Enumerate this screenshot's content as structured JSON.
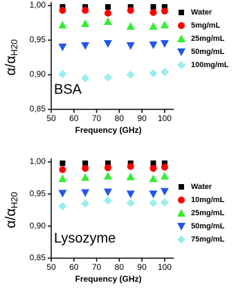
{
  "chart_data": [
    {
      "type": "scatter",
      "panel_label": "BSA",
      "xlabel": "Frequency (GHz)",
      "ylabel": "α/α",
      "ylabel_subscript": "H20",
      "x": [
        55,
        65,
        75,
        85,
        95,
        100
      ],
      "xlim": [
        50,
        104
      ],
      "xticks": [
        50,
        60,
        70,
        80,
        90,
        100
      ],
      "ylim": [
        0.85,
        1.0
      ],
      "yticks": [
        {
          "value": 0.85,
          "label": "0,85"
        },
        {
          "value": 0.9,
          "label": "0,90"
        },
        {
          "value": 0.95,
          "label": "0,95"
        },
        {
          "value": 1.0,
          "label": "1,00"
        }
      ],
      "series": [
        {
          "name": "Water",
          "color": "#000000",
          "marker": "square",
          "values": [
            0.998,
            0.998,
            0.998,
            0.998,
            0.998,
            0.998
          ]
        },
        {
          "name": "5mg/mL",
          "color": "#ff0000",
          "marker": "circle",
          "values": [
            0.993,
            0.993,
            0.989,
            0.993,
            0.99,
            0.992
          ]
        },
        {
          "name": "25mg/mL",
          "color": "#33ee33",
          "marker": "triangle-up",
          "values": [
            0.972,
            0.974,
            0.977,
            0.97,
            0.97,
            0.972
          ]
        },
        {
          "name": "50mg/mL",
          "color": "#2255ee",
          "marker": "triangle-down",
          "values": [
            0.94,
            0.942,
            0.945,
            0.942,
            0.943,
            0.945
          ]
        },
        {
          "name": "100mg/mL",
          "color": "#99eeee",
          "marker": "diamond",
          "values": [
            0.901,
            0.895,
            0.896,
            0.9,
            0.902,
            0.904
          ]
        }
      ]
    },
    {
      "type": "scatter",
      "panel_label": "Lysozyme",
      "xlabel": "Frequency (GHz)",
      "ylabel": "α/α",
      "ylabel_subscript": "H20",
      "x": [
        55,
        65,
        75,
        85,
        95,
        100
      ],
      "xlim": [
        50,
        104
      ],
      "xticks": [
        50,
        60,
        70,
        80,
        90,
        100
      ],
      "ylim": [
        0.85,
        1.0
      ],
      "yticks": [
        {
          "value": 0.85,
          "label": "0,85"
        },
        {
          "value": 0.9,
          "label": "0,90"
        },
        {
          "value": 0.95,
          "label": "0,95"
        },
        {
          "value": 1.0,
          "label": "1,00"
        }
      ],
      "series": [
        {
          "name": "Water",
          "color": "#000000",
          "marker": "square",
          "values": [
            0.998,
            0.998,
            0.998,
            0.998,
            0.998,
            0.998
          ]
        },
        {
          "name": "10mg/mL",
          "color": "#ff0000",
          "marker": "circle",
          "values": [
            0.988,
            0.99,
            0.991,
            0.993,
            0.99,
            0.992
          ]
        },
        {
          "name": "25mg/mL",
          "color": "#33ee33",
          "marker": "triangle-up",
          "values": [
            0.974,
            0.976,
            0.978,
            0.977,
            0.974,
            0.978
          ]
        },
        {
          "name": "50mg/mL",
          "color": "#2255ee",
          "marker": "triangle-down",
          "values": [
            0.951,
            0.952,
            0.953,
            0.95,
            0.95,
            0.954
          ]
        },
        {
          "name": "75mg/mL",
          "color": "#99eeee",
          "marker": "diamond",
          "values": [
            0.931,
            0.935,
            0.94,
            0.936,
            0.936,
            0.937
          ]
        }
      ]
    }
  ]
}
